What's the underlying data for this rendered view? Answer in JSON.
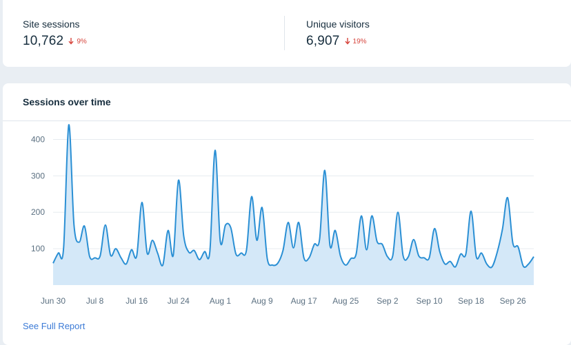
{
  "stats": [
    {
      "label": "Site sessions",
      "value": "10,762",
      "change": "9%",
      "direction": "down"
    },
    {
      "label": "Unique visitors",
      "value": "6,907",
      "change": "19%",
      "direction": "down"
    }
  ],
  "chart_section": {
    "title": "Sessions over time",
    "link_label": "See Full Report"
  },
  "colors": {
    "line": "#2a8fd4",
    "area": "#d4e8f8",
    "decrease": "#d6453d",
    "link": "#3b7ad6"
  },
  "chart_data": {
    "type": "area",
    "title": "Sessions over time",
    "ylim": [
      0,
      450
    ],
    "yticks": [
      100,
      200,
      300,
      400
    ],
    "grid": true,
    "x_tick_labels": [
      "Jun 30",
      "Jul 8",
      "Jul 16",
      "Jul 24",
      "Aug 1",
      "Aug 9",
      "Aug 17",
      "Aug 25",
      "Sep 2",
      "Sep 10",
      "Sep 18",
      "Sep 26"
    ],
    "x_tick_every_days": 8,
    "start_label": "Jun 30",
    "series": [
      {
        "name": "Sessions",
        "values": [
          60,
          88,
          100,
          440,
          165,
          118,
          162,
          78,
          75,
          80,
          165,
          82,
          100,
          75,
          58,
          97,
          80,
          227,
          88,
          123,
          88,
          55,
          150,
          82,
          288,
          135,
          90,
          95,
          70,
          92,
          92,
          370,
          120,
          165,
          158,
          85,
          88,
          95,
          243,
          123,
          213,
          72,
          55,
          60,
          95,
          172,
          102,
          172,
          75,
          75,
          112,
          125,
          315,
          108,
          150,
          80,
          55,
          73,
          85,
          190,
          97,
          190,
          120,
          112,
          78,
          80,
          200,
          80,
          78,
          125,
          80,
          75,
          75,
          155,
          92,
          58,
          65,
          50,
          85,
          85,
          203,
          78,
          88,
          58,
          50,
          90,
          153,
          240,
          115,
          105,
          52,
          58,
          78
        ]
      }
    ]
  }
}
